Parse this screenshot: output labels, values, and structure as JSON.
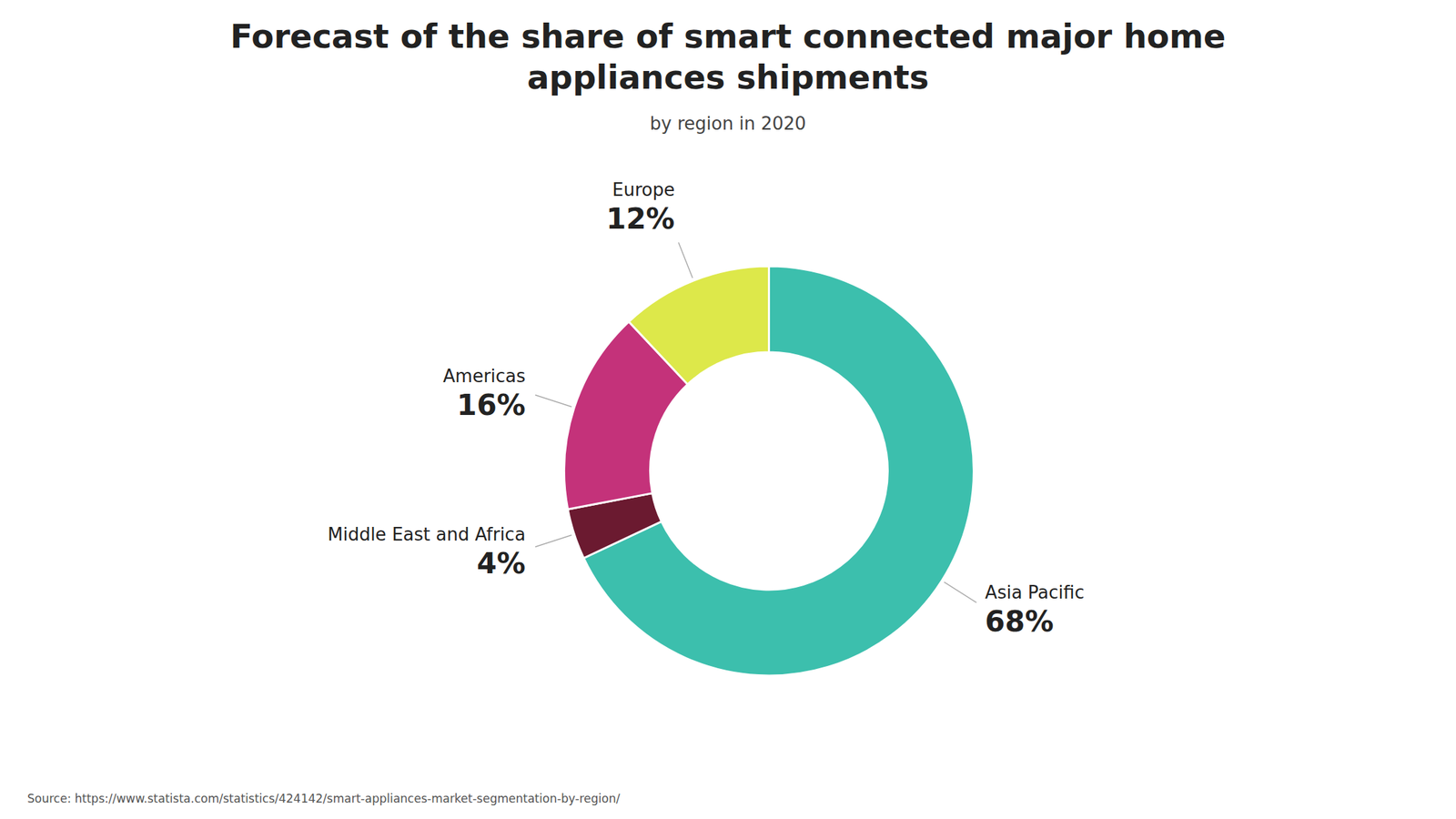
{
  "chart_data": {
    "type": "donut",
    "title": "Forecast of the share of smart connected major home\nappliances shipments",
    "subtitle": "by region in 2020",
    "source": "Source: https://www.statista.com/statistics/424142/smart-appliances-market-segmentation-by-region/",
    "categories": [
      "Asia Pacific",
      "Middle East and Africa",
      "Americas",
      "Europe"
    ],
    "values": [
      68,
      4,
      16,
      12
    ],
    "value_labels": [
      "68%",
      "4%",
      "16%",
      "12%"
    ],
    "colors": [
      "#3cbfad",
      "#6b1a30",
      "#c4327a",
      "#dde84a"
    ],
    "data_labels": true
  }
}
